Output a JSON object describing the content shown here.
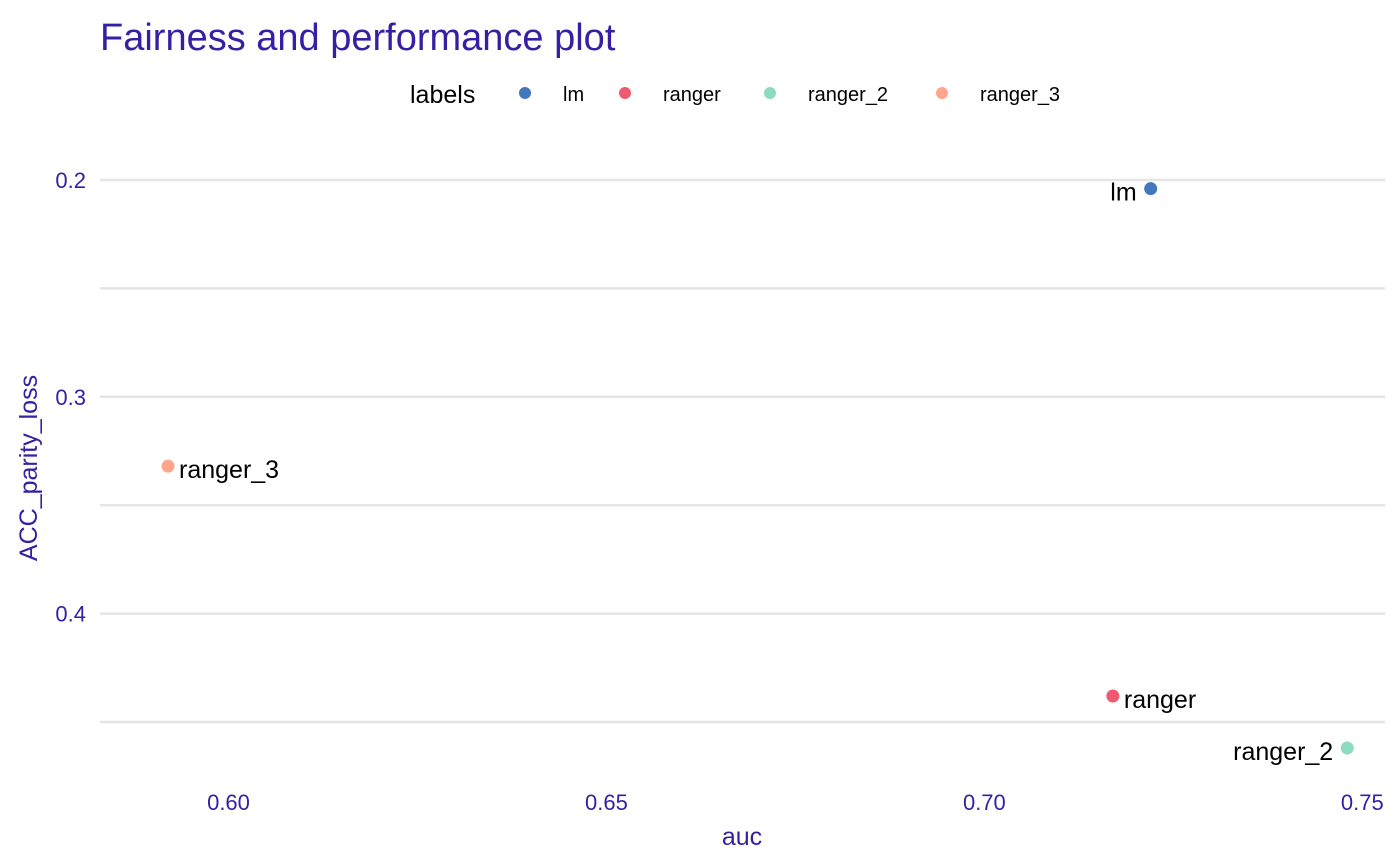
{
  "chart_data": {
    "type": "scatter",
    "title": "Fairness and performance plot",
    "xlabel": "auc",
    "ylabel": "ACC_parity_loss",
    "xlim": [
      0.583,
      0.753
    ],
    "ylim": [
      0.2,
      0.45
    ],
    "y_reversed": true,
    "x_ticks": [
      "0.60",
      "0.65",
      "0.70",
      "0.75"
    ],
    "x_tick_values": [
      0.6,
      0.65,
      0.7,
      0.75
    ],
    "y_ticks": [
      "0.2",
      "0.3",
      "0.4"
    ],
    "y_tick_values": [
      0.2,
      0.3,
      0.4
    ],
    "y_minor_gridlines": [
      0.25,
      0.35,
      0.45
    ],
    "grid": "horizontal only",
    "legend": {
      "title": "labels",
      "position": "top"
    },
    "series": [
      {
        "name": "lm",
        "x": 0.722,
        "y": 0.204,
        "color": "#4378bf",
        "label_side": "left"
      },
      {
        "name": "ranger",
        "x": 0.717,
        "y": 0.438,
        "color": "#f05a71",
        "label_side": "right"
      },
      {
        "name": "ranger_2",
        "x": 0.748,
        "y": 0.462,
        "color": "#8bdcbe",
        "label_side": "left"
      },
      {
        "name": "ranger_3",
        "x": 0.592,
        "y": 0.332,
        "color": "#ffa58c",
        "label_side": "right"
      }
    ]
  }
}
